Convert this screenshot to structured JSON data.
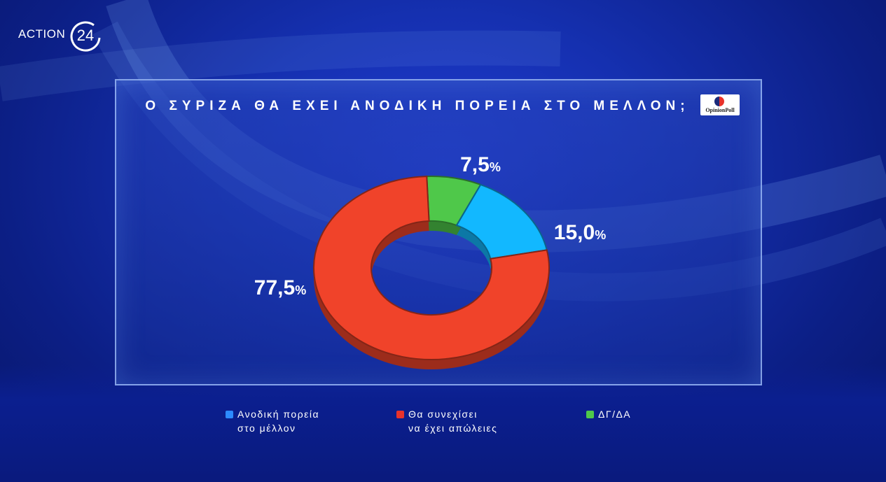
{
  "channel": {
    "logo_text": "ACTION",
    "logo_number": "24"
  },
  "brand": {
    "name": "OpinionPoll"
  },
  "chart_data": {
    "type": "pie",
    "style": "donut",
    "title": "Ο ΣΥΡΙΖΑ ΘΑ ΕΧΕΙ ΑΝΟΔΙΚΗ ΠΟΡΕΙΑ ΣΤΟ ΜΕΛΛΟΝ;",
    "slices": [
      {
        "label": "Ανοδική πορεία\nστο μέλλον",
        "value": 15.0,
        "display": "15,0",
        "color": "#12b8ff"
      },
      {
        "label": "Θα συνεχίσει\nνα έχει απώλειες",
        "value": 77.5,
        "display": "77,5",
        "color": "#f0432a"
      },
      {
        "label": "ΔΓ/ΔΑ",
        "value": 7.5,
        "display": "7,5",
        "color": "#4fc84a"
      }
    ],
    "unit": "%",
    "legend_position": "bottom"
  },
  "legend_colors": [
    "#2d8bff",
    "#e8322b",
    "#4fc84a"
  ]
}
